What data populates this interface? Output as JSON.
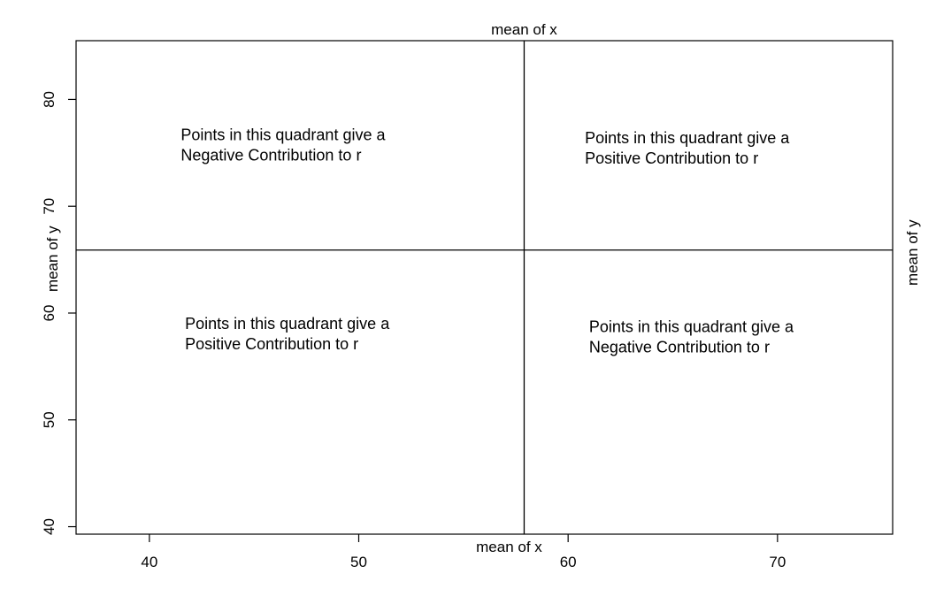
{
  "chart_data": {
    "type": "scatter",
    "title": "",
    "xlabel": "",
    "ylabel": "",
    "xlim": [
      36.5,
      75.5
    ],
    "ylim": [
      39.3,
      85.5
    ],
    "x_ticks": [
      40,
      50,
      60,
      70
    ],
    "y_ticks": [
      40,
      50,
      60,
      70,
      80
    ],
    "x_tick_labels": [
      "40",
      "50",
      "60",
      "70"
    ],
    "y_tick_labels": [
      "40",
      "50",
      "60",
      "70",
      "80"
    ],
    "mean_x": 57.9,
    "mean_y": 65.9,
    "grid": false,
    "series": [],
    "reference_lines": {
      "vertical_label": "mean of x",
      "horizontal_label": "mean of y"
    },
    "annotations": [
      {
        "quadrant": "top-left",
        "x": 41.5,
        "y": 76.2,
        "lines": [
          "Points in this quadrant give a",
          "Negative Contribution to r"
        ]
      },
      {
        "quadrant": "top-right",
        "x": 60.8,
        "y": 75.9,
        "lines": [
          "Points in this quadrant give a",
          "Positive Contribution to r"
        ]
      },
      {
        "quadrant": "bottom-left",
        "x": 41.7,
        "y": 58.5,
        "lines": [
          "Points in this quadrant give a",
          "Positive Contribution to r"
        ]
      },
      {
        "quadrant": "bottom-right",
        "x": 61.0,
        "y": 58.2,
        "lines": [
          "Points in this quadrant give a",
          "Negative Contribution to r"
        ]
      }
    ]
  }
}
